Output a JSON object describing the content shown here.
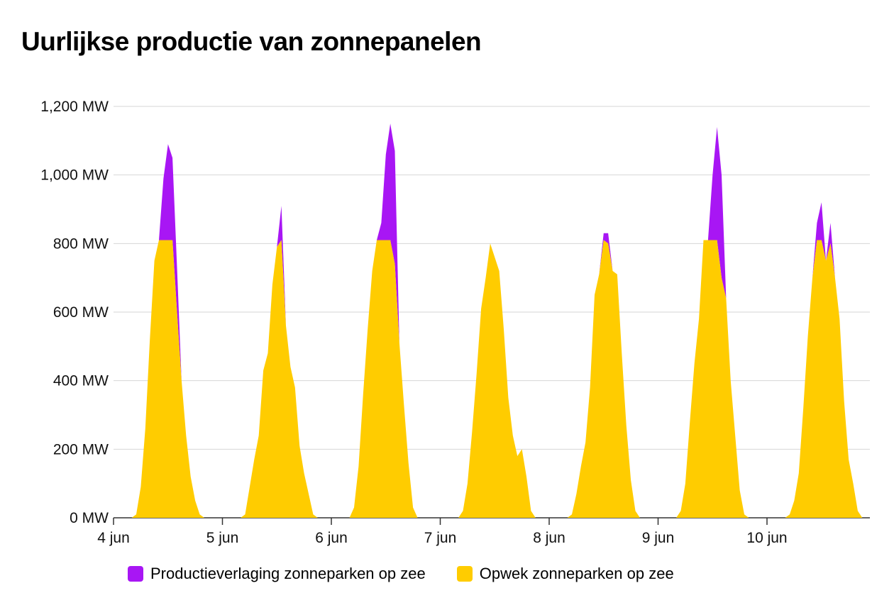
{
  "title": "Uurlijkse productie van zonnepanelen",
  "colors": {
    "reduction": "#a816f4",
    "production": "#ffcc00",
    "grid": "#d6d6d6"
  },
  "legend": {
    "reduction_label": "Productieverlaging zonneparken op zee",
    "production_label": "Opwek zonneparken op zee"
  },
  "chart_data": {
    "type": "area",
    "stacked": true,
    "title": "Uurlijkse productie van zonnepanelen",
    "xlabel": "",
    "ylabel": "",
    "y_unit": "MW",
    "ylim": [
      0,
      1200
    ],
    "xlim": [
      "2024-06-04T00:00",
      "2024-06-10T23:00"
    ],
    "y_ticks": [
      0,
      200,
      400,
      600,
      800,
      1000,
      1200
    ],
    "y_tick_labels": [
      "0 MW",
      "200 MW",
      "400 MW",
      "600 MW",
      "800 MW",
      "1,000 MW",
      "1,200 MW"
    ],
    "x_tick_labels": [
      "4 jun",
      "5 jun",
      "6 jun",
      "7 jun",
      "8 jun",
      "9 jun",
      "10 jun"
    ],
    "grid": true,
    "legend_position": "bottom",
    "days": [
      "4 jun",
      "5 jun",
      "6 jun",
      "7 jun",
      "8 jun",
      "9 jun",
      "10 jun"
    ],
    "hours": [
      4,
      5,
      6,
      7,
      8,
      9,
      10,
      11,
      12,
      13,
      14,
      15,
      16,
      17,
      18,
      19,
      20,
      21,
      22
    ],
    "series": [
      {
        "name": "Opwek zonneparken op zee",
        "values_by_day": [
          [
            0,
            10,
            90,
            260,
            520,
            750,
            810,
            810,
            810,
            810,
            600,
            400,
            240,
            120,
            50,
            10,
            0,
            0,
            0
          ],
          [
            0,
            10,
            90,
            170,
            240,
            430,
            480,
            680,
            790,
            810,
            560,
            440,
            380,
            210,
            130,
            70,
            10,
            0,
            0
          ],
          [
            0,
            30,
            150,
            360,
            550,
            720,
            810,
            810,
            810,
            810,
            740,
            510,
            330,
            160,
            30,
            0,
            0,
            0,
            0
          ],
          [
            0,
            20,
            100,
            250,
            420,
            610,
            700,
            800,
            760,
            720,
            550,
            350,
            240,
            180,
            200,
            120,
            20,
            0,
            0
          ],
          [
            0,
            10,
            70,
            150,
            220,
            380,
            650,
            710,
            810,
            800,
            720,
            710,
            480,
            270,
            110,
            20,
            0,
            0,
            0
          ],
          [
            0,
            20,
            100,
            280,
            450,
            580,
            810,
            810,
            810,
            810,
            700,
            640,
            400,
            240,
            80,
            10,
            0,
            0,
            0
          ],
          [
            0,
            10,
            50,
            130,
            320,
            530,
            700,
            810,
            810,
            750,
            800,
            700,
            580,
            340,
            170,
            100,
            20,
            0,
            0
          ]
        ]
      },
      {
        "name": "Productieverlaging zonneparken op zee",
        "values_by_day": [
          [
            0,
            0,
            0,
            0,
            0,
            0,
            0,
            180,
            280,
            240,
            130,
            0,
            0,
            0,
            0,
            0,
            0,
            0,
            0
          ],
          [
            0,
            0,
            0,
            0,
            0,
            0,
            0,
            0,
            0,
            100,
            0,
            0,
            0,
            0,
            0,
            0,
            0,
            0,
            0
          ],
          [
            0,
            0,
            0,
            0,
            0,
            0,
            0,
            50,
            250,
            340,
            330,
            0,
            0,
            0,
            0,
            0,
            0,
            0,
            0
          ],
          [
            0,
            0,
            0,
            0,
            0,
            0,
            0,
            0,
            0,
            0,
            0,
            0,
            0,
            0,
            0,
            0,
            0,
            0,
            0
          ],
          [
            0,
            0,
            0,
            0,
            0,
            0,
            0,
            0,
            20,
            30,
            0,
            0,
            0,
            0,
            0,
            0,
            0,
            0,
            0
          ],
          [
            0,
            0,
            0,
            0,
            0,
            0,
            0,
            0,
            190,
            330,
            300,
            0,
            0,
            0,
            0,
            0,
            0,
            0,
            0
          ],
          [
            0,
            0,
            0,
            0,
            0,
            0,
            0,
            50,
            110,
            0,
            60,
            0,
            0,
            0,
            0,
            0,
            0,
            0,
            0
          ]
        ]
      }
    ]
  }
}
